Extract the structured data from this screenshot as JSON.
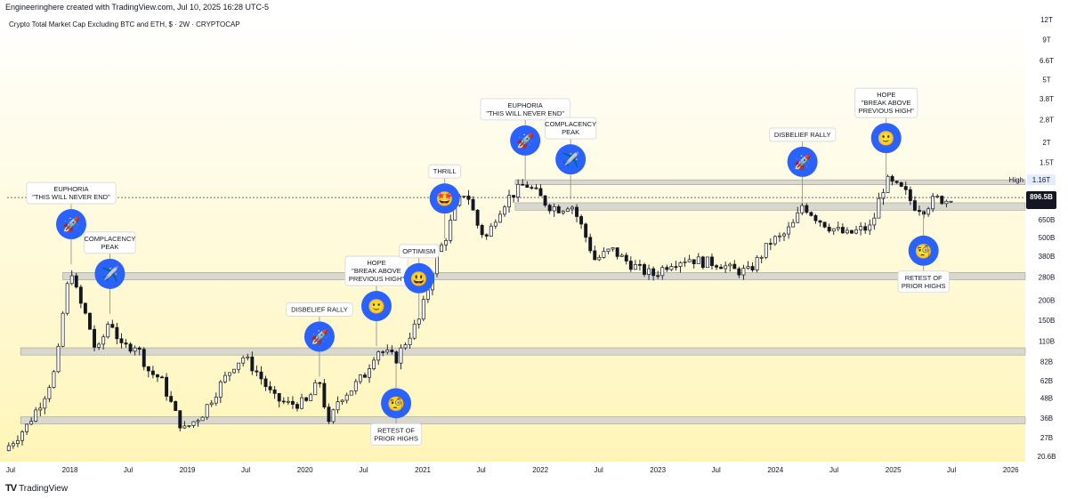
{
  "header": {
    "attribution": "Engineeringhere created with TradingView.com, Jul 10, 2025 16:28 UTC-5",
    "subtitle": "Crypto Total Market Cap Excluding BTC and ETH, $ · 2W · CRYPTOCAP"
  },
  "footer": {
    "logo": "TV",
    "brand": "TradingView"
  },
  "colors": {
    "candle": "#131722",
    "zone_fill": "#d8d8cf",
    "zone_stroke": "#9e9e96",
    "circle": "#2962ff",
    "bg_top": "#ffffff",
    "bg_bottom": "#fff5b8",
    "badge_dark": "#131722",
    "high_badge": "#e3ecff"
  },
  "chart_data": {
    "type": "candlestick",
    "title": "Crypto Total Market Cap Excluding BTC and ETH, $ · 2W · CRYPTOCAP",
    "scale": "log",
    "x_range": [
      "2017-06-20",
      "2026-02-15"
    ],
    "y_range": [
      19,
      13000
    ],
    "unit": "billions USD",
    "x_ticks": [
      {
        "label": "Jul",
        "date": "2017-07-01"
      },
      {
        "label": "2018",
        "date": "2018-01-01"
      },
      {
        "label": "Jul",
        "date": "2018-07-01"
      },
      {
        "label": "2019",
        "date": "2019-01-01"
      },
      {
        "label": "Jul",
        "date": "2019-07-01"
      },
      {
        "label": "2020",
        "date": "2020-01-01"
      },
      {
        "label": "Jul",
        "date": "2020-07-01"
      },
      {
        "label": "2021",
        "date": "2021-01-01"
      },
      {
        "label": "Jul",
        "date": "2021-07-01"
      },
      {
        "label": "2022",
        "date": "2022-01-01"
      },
      {
        "label": "Jul",
        "date": "2022-07-01"
      },
      {
        "label": "2023",
        "date": "2023-01-01"
      },
      {
        "label": "Jul",
        "date": "2023-07-01"
      },
      {
        "label": "2024",
        "date": "2024-01-01"
      },
      {
        "label": "Jul",
        "date": "2024-07-01"
      },
      {
        "label": "2025",
        "date": "2025-01-01"
      },
      {
        "label": "Jul",
        "date": "2025-07-01"
      },
      {
        "label": "2026",
        "date": "2026-01-01"
      }
    ],
    "y_ticks": [
      {
        "label": "12T",
        "value": 12000
      },
      {
        "label": "9T",
        "value": 9000
      },
      {
        "label": "6.6T",
        "value": 6600
      },
      {
        "label": "5T",
        "value": 5000
      },
      {
        "label": "3.8T",
        "value": 3800
      },
      {
        "label": "2.8T",
        "value": 2800
      },
      {
        "label": "2T",
        "value": 2000
      },
      {
        "label": "1.5T",
        "value": 1500
      },
      {
        "label": "650B",
        "value": 650
      },
      {
        "label": "500B",
        "value": 500
      },
      {
        "label": "380B",
        "value": 380
      },
      {
        "label": "280B",
        "value": 280
      },
      {
        "label": "200B",
        "value": 200
      },
      {
        "label": "150B",
        "value": 150
      },
      {
        "label": "110B",
        "value": 110
      },
      {
        "label": "82B",
        "value": 82
      },
      {
        "label": "62B",
        "value": 62
      },
      {
        "label": "48B",
        "value": 48
      },
      {
        "label": "36B",
        "value": 36
      },
      {
        "label": "27B",
        "value": 27
      },
      {
        "label": "20.6B",
        "value": 20.6
      }
    ],
    "high": {
      "label": "High",
      "value_label": "1.16T",
      "value": 1160
    },
    "last": {
      "value_label": "896.5B",
      "countdown": "10d 3h",
      "value": 896.5
    },
    "zones": [
      {
        "from": 33,
        "to": 36.5,
        "start": "2017-08-01"
      },
      {
        "from": 90,
        "to": 100,
        "start": "2017-08-01"
      },
      {
        "from": 270,
        "to": 300,
        "start": "2017-12-10"
      },
      {
        "from": 745,
        "to": 830,
        "start": "2021-10-15"
      },
      {
        "from": 1080,
        "to": 1160,
        "start": "2021-10-15"
      }
    ],
    "series": [
      {
        "name": "close",
        "points": [
          [
            "2017-06-25",
            24
          ],
          [
            "2017-08-20",
            32
          ],
          [
            "2017-10-10",
            48
          ],
          [
            "2017-11-20",
            75
          ],
          [
            "2017-12-15",
            200
          ],
          [
            "2018-01-05",
            320
          ],
          [
            "2018-01-25",
            210
          ],
          [
            "2018-02-25",
            150
          ],
          [
            "2018-03-25",
            90
          ],
          [
            "2018-04-20",
            125
          ],
          [
            "2018-05-05",
            155
          ],
          [
            "2018-06-10",
            100
          ],
          [
            "2018-07-25",
            105
          ],
          [
            "2018-09-05",
            70
          ],
          [
            "2018-10-10",
            64
          ],
          [
            "2018-11-25",
            38
          ],
          [
            "2018-12-20",
            30
          ],
          [
            "2019-02-15",
            38
          ],
          [
            "2019-04-05",
            55
          ],
          [
            "2019-05-25",
            78
          ],
          [
            "2019-06-25",
            88
          ],
          [
            "2019-08-10",
            68
          ],
          [
            "2019-09-25",
            48
          ],
          [
            "2019-11-10",
            44
          ],
          [
            "2020-01-05",
            45
          ],
          [
            "2020-02-15",
            62
          ],
          [
            "2020-03-15",
            32
          ],
          [
            "2020-04-15",
            48
          ],
          [
            "2020-05-25",
            55
          ],
          [
            "2020-07-05",
            68
          ],
          [
            "2020-08-10",
            98
          ],
          [
            "2020-09-10",
            92
          ],
          [
            "2020-10-10",
            85
          ],
          [
            "2020-11-20",
            120
          ],
          [
            "2020-12-20",
            150
          ],
          [
            "2021-01-15",
            230
          ],
          [
            "2021-02-10",
            380
          ],
          [
            "2021-03-10",
            480
          ],
          [
            "2021-04-15",
            800
          ],
          [
            "2021-05-15",
            1000
          ],
          [
            "2021-06-25",
            560
          ],
          [
            "2021-07-20",
            500
          ],
          [
            "2021-08-20",
            720
          ],
          [
            "2021-09-20",
            880
          ],
          [
            "2021-10-25",
            1010
          ],
          [
            "2021-11-15",
            1100
          ],
          [
            "2021-12-20",
            950
          ],
          [
            "2022-01-25",
            800
          ],
          [
            "2022-03-05",
            760
          ],
          [
            "2022-04-05",
            830
          ],
          [
            "2022-05-10",
            580
          ],
          [
            "2022-06-20",
            360
          ],
          [
            "2022-08-10",
            420
          ],
          [
            "2022-09-20",
            360
          ],
          [
            "2022-11-10",
            310
          ],
          [
            "2022-12-20",
            290
          ],
          [
            "2023-02-10",
            350
          ],
          [
            "2023-04-05",
            370
          ],
          [
            "2023-05-20",
            350
          ],
          [
            "2023-07-10",
            345
          ],
          [
            "2023-08-20",
            310
          ],
          [
            "2023-10-10",
            305
          ],
          [
            "2023-11-15",
            380
          ],
          [
            "2023-12-20",
            480
          ],
          [
            "2024-01-20",
            500
          ],
          [
            "2024-03-01",
            620
          ],
          [
            "2024-03-25",
            810
          ],
          [
            "2024-05-10",
            660
          ],
          [
            "2024-06-20",
            580
          ],
          [
            "2024-08-10",
            520
          ],
          [
            "2024-09-20",
            560
          ],
          [
            "2024-10-25",
            580
          ],
          [
            "2024-11-20",
            900
          ],
          [
            "2024-12-10",
            1150
          ],
          [
            "2025-01-10",
            1050
          ],
          [
            "2025-02-05",
            980
          ],
          [
            "2025-03-05",
            800
          ],
          [
            "2025-04-05",
            760
          ],
          [
            "2025-05-10",
            880
          ],
          [
            "2025-06-10",
            870
          ],
          [
            "2025-06-28",
            845
          ],
          [
            "2025-07-10",
            896.5
          ]
        ]
      }
    ],
    "annotations": [
      {
        "lines": [
          "EUPHORIA",
          "\"THIS WILL NEVER END\""
        ],
        "emoji": "🚀",
        "date": "2018-01-05",
        "value": 330,
        "layout": "above"
      },
      {
        "lines": [
          "COMPLACENCY",
          "PEAK"
        ],
        "emoji": "✈️",
        "date": "2018-05-05",
        "value": 160,
        "layout": "above"
      },
      {
        "lines": [
          "DISBELIEF RALLY"
        ],
        "emoji": "🚀",
        "date": "2020-02-15",
        "value": 64,
        "layout": "above"
      },
      {
        "lines": [
          "HOPE",
          "\"BREAK ABOVE",
          "PREVIOUS HIGH\""
        ],
        "emoji": "🙂",
        "date": "2020-08-10",
        "value": 100,
        "layout": "above"
      },
      {
        "lines": [
          "RETEST OF",
          "PRIOR HIGHS"
        ],
        "emoji": "🧐",
        "date": "2020-10-10",
        "value": 82,
        "layout": "below"
      },
      {
        "lines": [
          "OPTIMISM"
        ],
        "emoji": "😃",
        "date": "2020-12-20",
        "value": 150,
        "layout": "above"
      },
      {
        "lines": [
          "THRILL"
        ],
        "emoji": "🤩",
        "date": "2021-03-10",
        "value": 480,
        "layout": "above"
      },
      {
        "lines": [
          "EUPHORIA",
          "\"THIS WILL NEVER END\""
        ],
        "emoji": "🚀",
        "date": "2021-11-15",
        "value": 1120,
        "layout": "above"
      },
      {
        "lines": [
          "COMPLACENCY",
          "PEAK"
        ],
        "emoji": "✈️",
        "date": "2022-04-05",
        "value": 850,
        "layout": "above"
      },
      {
        "lines": [
          "DISBELIEF RALLY"
        ],
        "emoji": "🚀",
        "date": "2024-03-25",
        "value": 820,
        "layout": "above"
      },
      {
        "lines": [
          "HOPE",
          "\"BREAK ABOVE",
          "PREVIOUS HIGH\""
        ],
        "emoji": "🙂",
        "date": "2024-12-10",
        "value": 1160,
        "layout": "above"
      },
      {
        "lines": [
          "RETEST OF",
          "PRIOR HIGHS"
        ],
        "emoji": "🧐",
        "date": "2025-04-05",
        "value": 760,
        "layout": "below"
      }
    ]
  }
}
